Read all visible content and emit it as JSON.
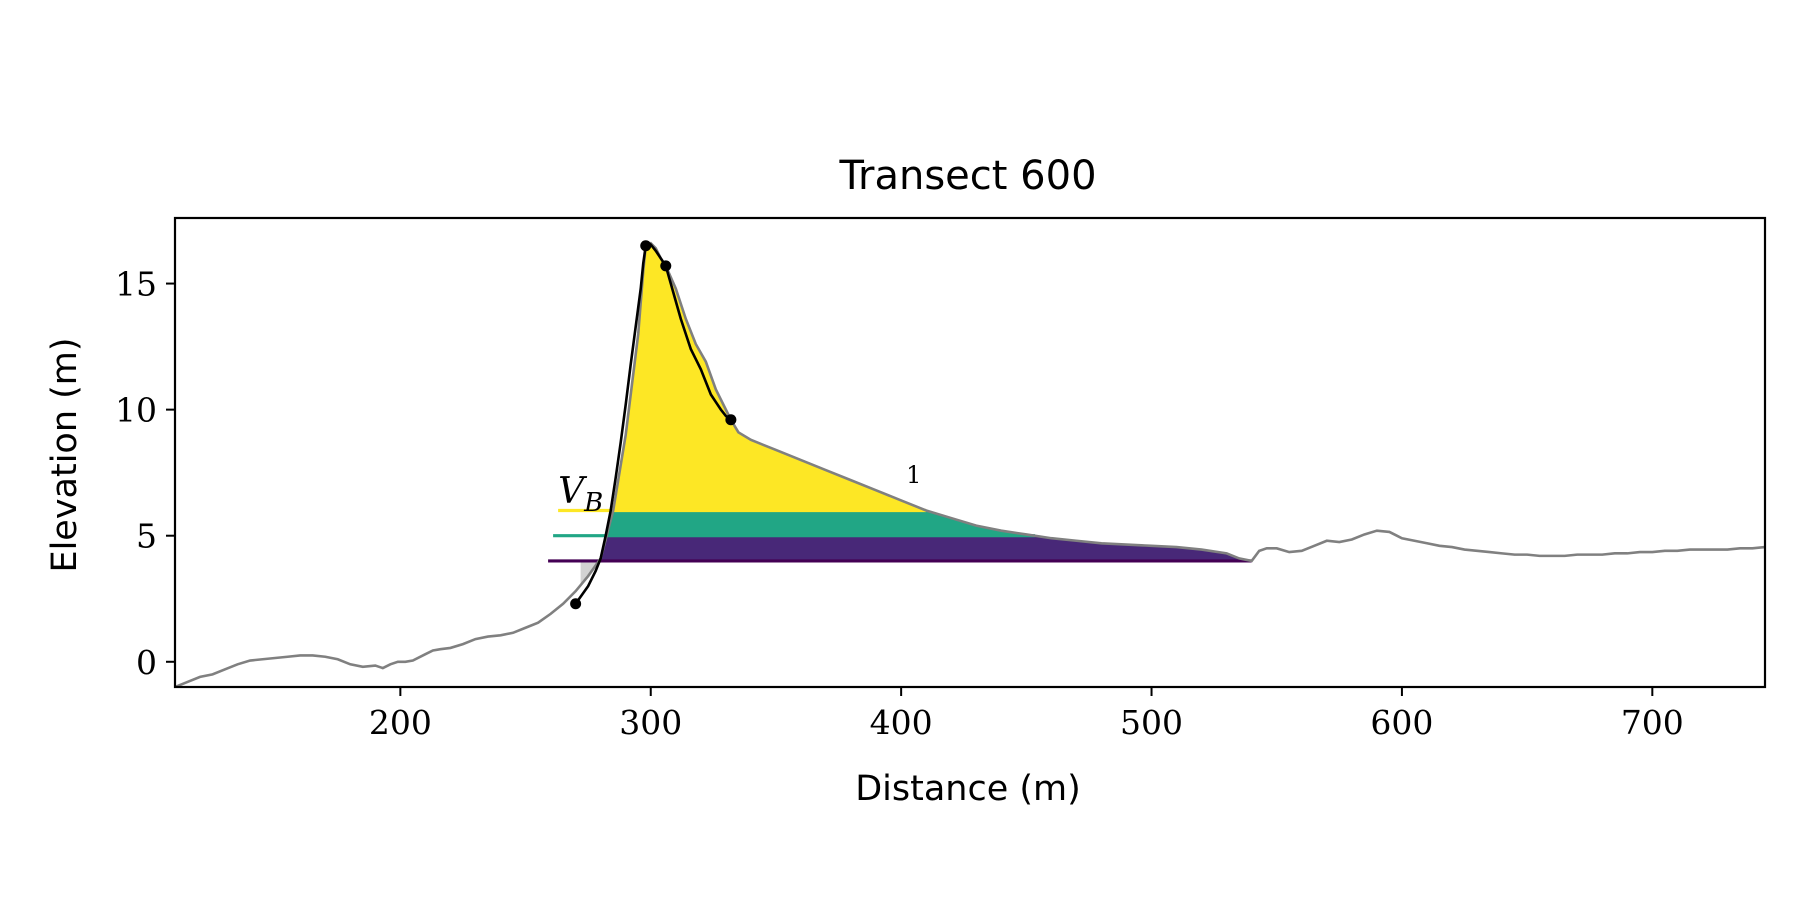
{
  "chart_data": {
    "type": "area",
    "title": "Transect 600",
    "xlabel": "Distance (m)",
    "ylabel": "Elevation (m)",
    "xlim": [
      110,
      745
    ],
    "ylim": [
      -1,
      17.6
    ],
    "xticks": [
      200,
      300,
      400,
      500,
      600,
      700
    ],
    "yticks": [
      0,
      5,
      10,
      15
    ],
    "xtick_labels": [
      "200",
      "300",
      "400",
      "500",
      "600",
      "700"
    ],
    "ytick_labels": [
      "0",
      "5",
      "10",
      "15"
    ],
    "grid": false,
    "legend": null,
    "annotations": [
      {
        "text": "V",
        "subscript": "B",
        "x": 263,
        "y": 6.3
      },
      {
        "text": "1",
        "x": 402,
        "y": 7.1
      }
    ],
    "profile": {
      "color": "#808080",
      "x": [
        110,
        115,
        120,
        125,
        130,
        135,
        140,
        145,
        150,
        155,
        160,
        165,
        170,
        175,
        180,
        185,
        190,
        193,
        196,
        199,
        202,
        205,
        210,
        213,
        216,
        220,
        225,
        230,
        235,
        240,
        245,
        250,
        255,
        260,
        265,
        270,
        275,
        280,
        285,
        290,
        295,
        297,
        298,
        300,
        302,
        304,
        306,
        310,
        314,
        318,
        322,
        326,
        330,
        332,
        335,
        340,
        350,
        360,
        370,
        380,
        390,
        400,
        410,
        420,
        430,
        440,
        450,
        460,
        470,
        480,
        490,
        500,
        510,
        520,
        530,
        535,
        540,
        543,
        546,
        550,
        555,
        560,
        565,
        570,
        575,
        580,
        585,
        590,
        595,
        600,
        605,
        610,
        615,
        620,
        625,
        630,
        635,
        640,
        645,
        650,
        655,
        660,
        665,
        670,
        675,
        680,
        685,
        690,
        695,
        700,
        705,
        710,
        715,
        720,
        725,
        730,
        735,
        740,
        745
      ],
      "y": [
        -1.0,
        -0.8,
        -0.6,
        -0.5,
        -0.3,
        -0.1,
        0.05,
        0.1,
        0.15,
        0.2,
        0.25,
        0.25,
        0.2,
        0.1,
        -0.1,
        -0.2,
        -0.15,
        -0.25,
        -0.1,
        0.0,
        0.0,
        0.05,
        0.3,
        0.45,
        0.5,
        0.55,
        0.7,
        0.9,
        1.0,
        1.05,
        1.15,
        1.35,
        1.55,
        1.9,
        2.3,
        2.8,
        3.4,
        4.1,
        6.0,
        9.0,
        13.0,
        15.5,
        16.5,
        16.6,
        16.4,
        16.0,
        15.7,
        14.8,
        13.6,
        12.6,
        11.9,
        10.8,
        10.0,
        9.6,
        9.1,
        8.8,
        8.4,
        8.0,
        7.6,
        7.2,
        6.8,
        6.4,
        6.0,
        5.7,
        5.4,
        5.2,
        5.05,
        4.9,
        4.8,
        4.7,
        4.65,
        4.6,
        4.55,
        4.45,
        4.3,
        4.1,
        4.0,
        4.4,
        4.5,
        4.5,
        4.35,
        4.4,
        4.6,
        4.8,
        4.75,
        4.85,
        5.05,
        5.2,
        5.15,
        4.9,
        4.8,
        4.7,
        4.6,
        4.55,
        4.45,
        4.4,
        4.35,
        4.3,
        4.25,
        4.25,
        4.2,
        4.2,
        4.2,
        4.25,
        4.25,
        4.25,
        4.3,
        4.3,
        4.35,
        4.35,
        4.4,
        4.4,
        4.45,
        4.45,
        4.45,
        4.45,
        4.5,
        4.5,
        4.55
      ]
    },
    "dune_outline": {
      "color": "#000000",
      "x": [
        270,
        275,
        278,
        280,
        282,
        284,
        286,
        288,
        290,
        292,
        294,
        296,
        297,
        298,
        299,
        300,
        302,
        304,
        306,
        308,
        310,
        312,
        314,
        316,
        318,
        320,
        322,
        324,
        326,
        328,
        330,
        332
      ],
      "y": [
        2.3,
        3.0,
        3.6,
        4.1,
        5.0,
        6.0,
        7.3,
        8.7,
        10.2,
        11.8,
        13.3,
        14.8,
        15.8,
        16.5,
        16.6,
        16.55,
        16.3,
        16.0,
        15.7,
        15.0,
        14.3,
        13.6,
        13.0,
        12.4,
        12.0,
        11.6,
        11.1,
        10.6,
        10.3,
        10.0,
        9.75,
        9.6
      ]
    },
    "points": {
      "color": "#000000",
      "x": [
        270,
        298,
        306,
        332
      ],
      "y": [
        2.3,
        16.5,
        15.7,
        9.6
      ]
    },
    "levels": [
      {
        "elevation": 6.0,
        "color": "#fde725",
        "x_start": 263
      },
      {
        "elevation": 5.0,
        "color": "#21a685",
        "x_start": 261
      },
      {
        "elevation": 4.0,
        "color": "#440154",
        "x_start": 259
      }
    ],
    "band_colors": [
      "#fde725",
      "#21a685",
      "#482878"
    ],
    "below_fill_color": "#d3d3d3",
    "toe_x": 540
  }
}
